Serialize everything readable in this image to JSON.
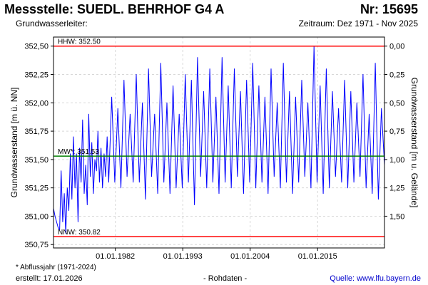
{
  "header": {
    "title": "Messstelle: SUEDL. BEHRHOF G4 A",
    "nr": "Nr: 15695",
    "aquifer_label": "Grundwasserleiter:",
    "period": "Zeitraum: Dez 1971 - Nov 2025"
  },
  "footer": {
    "note": "* Abflussjahr (1971-2024)",
    "created": "erstellt:  17.01.2026",
    "raw": "- Rohdaten -",
    "source": "Quelle:  www.lfu.bayern.de"
  },
  "chart_data": {
    "type": "line",
    "xlabel": "",
    "ylabel": "Grundwasserstand [m ü. NN]",
    "ylabel_right": "Grundwasserstand [m u. Gelände]",
    "xlim": [
      "1971-12-01",
      "2025-11-30"
    ],
    "ylim": [
      350.72,
      352.58
    ],
    "xticks": [
      "01.01.1982",
      "01.01.1993",
      "01.01.2004",
      "01.01.2015"
    ],
    "yticks": [
      "350,75",
      "351,00",
      "351,25",
      "351,50",
      "351,75",
      "352,00",
      "352,25",
      "352,50"
    ],
    "yticks_right": [
      "0,00",
      "0,25",
      "0,50",
      "0,75",
      "1,00",
      "1,25",
      "1,50"
    ],
    "yticks_right_values": [
      352.5,
      352.25,
      352.0,
      351.75,
      351.5,
      351.25,
      351.0
    ],
    "grid": true,
    "reference_lines": [
      {
        "label": "HHW: 352.50",
        "value": 352.5,
        "color": "#ff0000"
      },
      {
        "label": "MW*: 351.53",
        "value": 351.53,
        "color": "#008000"
      },
      {
        "label": "NNW: 350.82",
        "value": 350.82,
        "color": "#ff0000"
      }
    ],
    "series": [
      {
        "color": "#0000ff",
        "x": [
          "1971-12-01",
          "1972-03-01",
          "1972-06-01",
          "1972-09-01",
          "1972-12-01",
          "1973-03-01",
          "1973-06-01",
          "1973-09-01",
          "1973-12-01",
          "1974-03-01",
          "1974-06-01",
          "1974-09-01",
          "1974-12-01",
          "1975-03-01",
          "1975-06-01",
          "1975-09-01",
          "1975-12-01",
          "1976-03-01",
          "1976-06-01",
          "1976-09-01",
          "1976-12-01",
          "1977-03-01",
          "1977-06-01",
          "1977-09-01",
          "1977-12-01",
          "1978-03-01",
          "1978-06-01",
          "1978-09-01",
          "1978-12-01",
          "1979-03-01",
          "1979-06-01",
          "1979-09-01",
          "1979-12-01",
          "1980-03-01",
          "1980-06-01",
          "1980-09-01",
          "1980-12-01",
          "1981-06-01",
          "1981-12-01",
          "1982-06-01",
          "1982-12-01",
          "1983-06-01",
          "1983-12-01",
          "1984-06-01",
          "1984-12-01",
          "1985-06-01",
          "1985-12-01",
          "1986-06-01",
          "1986-12-01",
          "1987-06-01",
          "1987-12-01",
          "1988-06-01",
          "1988-12-01",
          "1989-06-01",
          "1989-12-01",
          "1990-06-01",
          "1990-12-01",
          "1991-06-01",
          "1991-12-01",
          "1992-06-01",
          "1992-12-01",
          "1993-06-01",
          "1993-12-01",
          "1994-06-01",
          "1994-12-01",
          "1995-06-01",
          "1995-12-01",
          "1996-06-01",
          "1996-12-01",
          "1997-06-01",
          "1997-12-01",
          "1998-06-01",
          "1998-12-01",
          "1999-06-01",
          "1999-12-01",
          "2000-06-01",
          "2000-12-01",
          "2001-06-01",
          "2001-12-01",
          "2002-06-01",
          "2002-12-01",
          "2003-06-01",
          "2003-12-01",
          "2004-06-01",
          "2004-12-01",
          "2005-06-01",
          "2005-12-01",
          "2006-06-01",
          "2006-12-01",
          "2007-06-01",
          "2007-12-01",
          "2008-06-01",
          "2008-12-01",
          "2009-06-01",
          "2009-12-01",
          "2010-06-01",
          "2010-12-01",
          "2011-06-01",
          "2011-12-01",
          "2012-06-01",
          "2012-12-01",
          "2013-06-01",
          "2013-12-01",
          "2014-06-01",
          "2014-12-01",
          "2015-06-01",
          "2015-12-01",
          "2016-06-01",
          "2016-12-01",
          "2017-06-01",
          "2017-12-01",
          "2018-06-01",
          "2018-12-01",
          "2019-06-01",
          "2019-12-01",
          "2020-06-01",
          "2020-12-01",
          "2021-06-01",
          "2021-12-01",
          "2022-06-01",
          "2022-12-01",
          "2023-06-01",
          "2023-12-01",
          "2024-06-01",
          "2024-12-01",
          "2025-06-01",
          "2025-11-30"
        ],
        "y": [
          351.07,
          351.0,
          350.95,
          350.9,
          350.88,
          351.4,
          350.95,
          351.2,
          350.85,
          351.25,
          351.05,
          351.55,
          351.15,
          351.7,
          351.25,
          351.55,
          350.95,
          351.6,
          351.3,
          351.85,
          351.2,
          351.45,
          351.1,
          351.9,
          351.35,
          351.65,
          351.2,
          351.5,
          351.4,
          351.75,
          351.3,
          351.6,
          351.25,
          351.55,
          351.35,
          351.7,
          351.3,
          352.05,
          351.3,
          351.95,
          351.25,
          352.2,
          351.35,
          351.9,
          351.3,
          352.25,
          351.3,
          352.0,
          351.15,
          352.3,
          351.35,
          351.9,
          351.2,
          352.35,
          351.3,
          352.0,
          351.2,
          352.15,
          351.25,
          351.9,
          351.25,
          352.25,
          351.3,
          352.2,
          351.1,
          352.4,
          351.35,
          352.1,
          351.25,
          352.3,
          351.3,
          352.05,
          351.2,
          352.4,
          351.3,
          352.15,
          351.25,
          352.3,
          351.35,
          352.1,
          351.2,
          352.2,
          351.3,
          352.35,
          351.25,
          352.15,
          351.3,
          352.05,
          351.2,
          352.3,
          351.35,
          352.0,
          351.25,
          352.35,
          351.3,
          352.1,
          351.2,
          352.05,
          351.3,
          352.2,
          351.35,
          352.0,
          351.25,
          352.5,
          351.3,
          352.15,
          351.2,
          352.3,
          351.25,
          352.1,
          351.35,
          351.95,
          351.3,
          352.2,
          351.25,
          352.1,
          351.3,
          352.0,
          351.35,
          352.25,
          351.25,
          351.9,
          351.2,
          352.35,
          351.15,
          351.95,
          351.45
        ]
      }
    ]
  }
}
